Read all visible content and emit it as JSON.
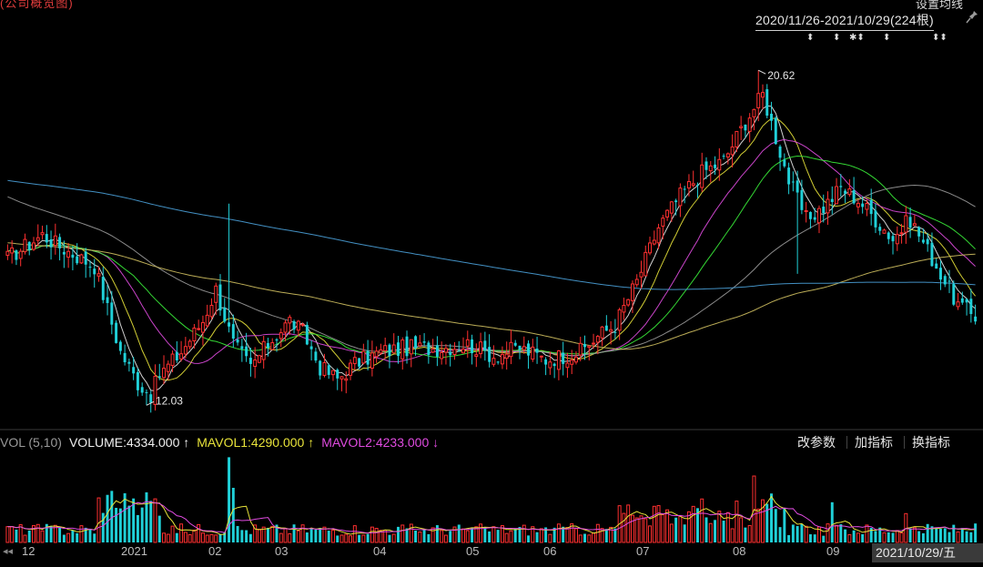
{
  "title_fragment": "(公司概览图)",
  "settings_link": "设置均线",
  "date_range": "2020/11/26-2021/10/29(224根)",
  "markers": [
    "⬍",
    "⬍",
    "✱⬍",
    "⬍",
    "⬍⬍"
  ],
  "price_high_label": "20.62",
  "price_low_label": "12.03",
  "indicator": {
    "name": "VOL (5,10)",
    "volume": "VOLUME:4334.000 ↑",
    "mavol1": "MAVOL1:4290.000 ↑",
    "mavol2": "MAVOL2:4233.000 ↓"
  },
  "buttons": {
    "params": "改参数",
    "add": "加指标",
    "switch": "换指标"
  },
  "nav_arrows": "◂◂",
  "current_date": "2021/10/29/五",
  "months": [
    "12",
    "2021",
    "02",
    "03",
    "04",
    "05",
    "06",
    "07",
    "08",
    "09"
  ],
  "colors": {
    "up": "#ff3030",
    "down": "#20d0d8",
    "ma5": "#e8e8e8",
    "ma10": "#e8e33a",
    "ma20": "#e04be0",
    "ma30": "#3aee3a",
    "ma60": "#9a9a9a",
    "ma120": "#d0c060",
    "ma250": "#4aa0d8"
  },
  "chart_data": {
    "type": "candlestick",
    "period": "2020/11/26-2021/10/29",
    "count": 224,
    "price_range": [
      11.5,
      21.3
    ],
    "annotations": [
      {
        "text": "20.62",
        "value": 20.62
      },
      {
        "text": "12.03",
        "value": 12.03
      }
    ],
    "anchors_day_close": [
      [
        0,
        15.8
      ],
      [
        8,
        16.4
      ],
      [
        12,
        16.1
      ],
      [
        20,
        15.6
      ],
      [
        26,
        13.4
      ],
      [
        30,
        12.6
      ],
      [
        33,
        12.3
      ],
      [
        35,
        12.8
      ],
      [
        40,
        13.4
      ],
      [
        45,
        14.2
      ],
      [
        48,
        15.0
      ],
      [
        52,
        13.6
      ],
      [
        56,
        13.0
      ],
      [
        60,
        13.6
      ],
      [
        65,
        14.2
      ],
      [
        68,
        13.9
      ],
      [
        72,
        13.0
      ],
      [
        76,
        12.7
      ],
      [
        80,
        13.1
      ],
      [
        86,
        13.4
      ],
      [
        92,
        13.5
      ],
      [
        100,
        13.5
      ],
      [
        106,
        13.6
      ],
      [
        112,
        13.3
      ],
      [
        118,
        13.5
      ],
      [
        124,
        13.2
      ],
      [
        132,
        13.4
      ],
      [
        136,
        13.8
      ],
      [
        140,
        14.1
      ],
      [
        145,
        15.2
      ],
      [
        150,
        16.6
      ],
      [
        155,
        17.4
      ],
      [
        160,
        18.0
      ],
      [
        165,
        18.3
      ],
      [
        170,
        19.3
      ],
      [
        174,
        20.0
      ],
      [
        177,
        18.9
      ],
      [
        180,
        17.8
      ],
      [
        184,
        16.8
      ],
      [
        188,
        17.1
      ],
      [
        192,
        17.6
      ],
      [
        196,
        17.3
      ],
      [
        200,
        16.8
      ],
      [
        204,
        16.3
      ],
      [
        208,
        16.8
      ],
      [
        212,
        16.0
      ],
      [
        216,
        15.2
      ],
      [
        219,
        14.6
      ],
      [
        223,
        14.3
      ]
    ],
    "volume_range": [
      0,
      20000
    ],
    "volume_latest": 4334,
    "mavol1": 4290,
    "mavol2": 4233
  }
}
